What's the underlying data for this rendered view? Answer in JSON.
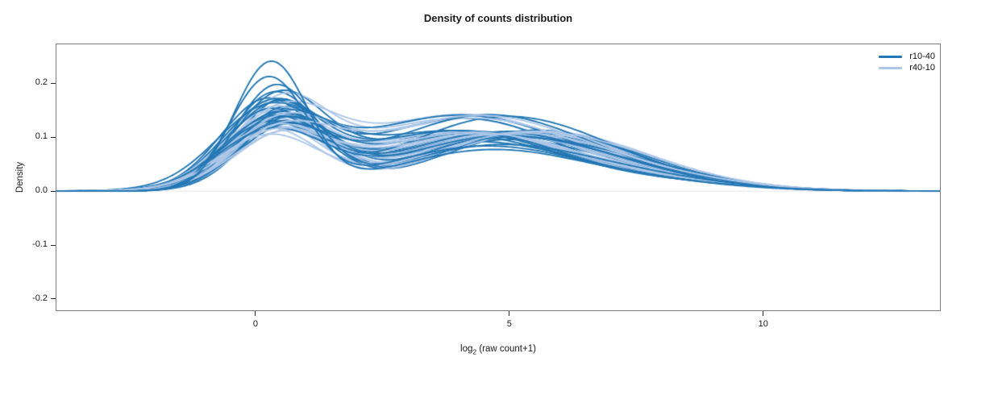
{
  "figure": {
    "title": "Density of counts distribution"
  },
  "axes": {
    "ylabel": "Density",
    "xlabel_prefix": "log",
    "xlabel_sub": "2",
    "xlabel_rest": " (raw count+1)"
  },
  "legend": {
    "items": [
      {
        "label": "r10-40",
        "color": "#2277b4"
      },
      {
        "label": "r40-10",
        "color": "#aec7e8"
      }
    ]
  },
  "chart_data": {
    "type": "line",
    "subtype": "overlaid-density-curves",
    "title": "Density of counts distribution",
    "xlabel": "log2 (raw count+1)",
    "ylabel": "Density",
    "xlim": [
      -3.92,
      13.48
    ],
    "ylim": [
      -0.221,
      0.272
    ],
    "x_ticks": [
      0,
      5,
      10
    ],
    "y_ticks": [
      -0.2,
      -0.1,
      0.0,
      0.1,
      0.2
    ],
    "grid": false,
    "legend_position": "upper right",
    "frame_color": "#7f7f7f",
    "zero_line_color": "#ebebeb",
    "tick_color": "#2b2b2b",
    "curve_model": "each curve = sum of 3 gaussian bumps, params [amp1,mean1,sd1,amp2,mean2,sd2,amp3,mean3,sd3] in data units",
    "series": [
      {
        "name": "r10-40",
        "color": "#2277b4",
        "n_curves": 26,
        "peak1_height_range": [
          0.108,
          0.235
        ],
        "peak1_x_range": [
          0.2,
          0.65
        ],
        "peak2_height_range": [
          0.075,
          0.14
        ],
        "peak2_x_range": [
          3.8,
          5.5
        ],
        "curves": [
          [
            0.17,
            0.35,
            0.85,
            0.09,
            4.2,
            2.0,
            0.018,
            7.8,
            1.7
          ],
          [
            0.165,
            0.5,
            0.85,
            0.095,
            5.0,
            1.9,
            0.01,
            8.5,
            1.5
          ],
          [
            0.16,
            0.2,
            0.9,
            0.1,
            4.5,
            2.1,
            0.015,
            7.2,
            1.9
          ],
          [
            0.155,
            0.45,
            0.88,
            0.105,
            3.9,
            2.2,
            0.012,
            8.8,
            1.4
          ],
          [
            0.15,
            0.6,
            0.9,
            0.098,
            5.3,
            1.8,
            0.02,
            7.0,
            2.0
          ],
          [
            0.148,
            0.3,
            0.95,
            0.135,
            4.1,
            2.0,
            0.01,
            9.0,
            1.5
          ],
          [
            0.145,
            0.55,
            0.85,
            0.102,
            4.9,
            2.1,
            0.016,
            7.6,
            1.8
          ],
          [
            0.142,
            0.25,
            0.92,
            0.108,
            4.3,
            1.9,
            0.013,
            8.3,
            1.6
          ],
          [
            0.14,
            0.5,
            0.95,
            0.095,
            5.5,
            1.9,
            0.018,
            6.8,
            2.1
          ],
          [
            0.138,
            0.35,
            0.9,
            0.112,
            4.0,
            2.2,
            0.011,
            8.6,
            1.5
          ],
          [
            0.135,
            0.65,
            0.88,
            0.1,
            5.1,
            2.0,
            0.015,
            7.4,
            1.9
          ],
          [
            0.133,
            0.4,
            0.96,
            0.105,
            4.6,
            2.1,
            0.012,
            8.1,
            1.7
          ],
          [
            0.13,
            0.2,
            1.0,
            0.14,
            4.0,
            2.2,
            0.014,
            7.9,
            1.6
          ],
          [
            0.128,
            0.55,
            0.92,
            0.098,
            5.4,
            1.8,
            0.019,
            6.9,
            2.0
          ],
          [
            0.126,
            0.3,
            0.98,
            0.11,
            4.4,
            2.0,
            0.01,
            8.9,
            1.4
          ],
          [
            0.124,
            0.6,
            0.9,
            0.104,
            4.8,
            2.1,
            0.016,
            7.3,
            1.8
          ],
          [
            0.122,
            0.45,
            1.0,
            0.108,
            4.2,
            1.9,
            0.013,
            8.4,
            1.6
          ],
          [
            0.12,
            0.25,
            0.95,
            0.13,
            4.8,
            2.0,
            0.017,
            7.1,
            1.9
          ],
          [
            0.118,
            0.5,
            0.98,
            0.112,
            3.9,
            2.1,
            0.011,
            8.7,
            1.5
          ],
          [
            0.115,
            0.35,
            1.02,
            0.106,
            4.7,
            2.0,
            0.015,
            7.7,
            1.7
          ],
          [
            0.112,
            0.6,
            0.95,
            0.098,
            5.0,
            2.2,
            0.012,
            8.0,
            1.6
          ],
          [
            0.11,
            0.4,
            1.0,
            0.138,
            4.5,
            2.0,
            0.014,
            7.5,
            1.8
          ],
          [
            0.108,
            0.3,
            1.05,
            0.102,
            4.9,
            2.1,
            0.01,
            8.2,
            1.5
          ],
          [
            0.19,
            0.4,
            0.8,
            0.085,
            4.8,
            2.0,
            0.012,
            8.2,
            1.6
          ],
          [
            0.205,
            0.25,
            0.75,
            0.08,
            4.4,
            1.9,
            0.015,
            7.5,
            1.8
          ],
          [
            0.235,
            0.3,
            0.72,
            0.075,
            4.6,
            1.9,
            0.012,
            8.0,
            1.8
          ]
        ]
      },
      {
        "name": "r40-10",
        "color": "#aec7e8",
        "n_curves": 26,
        "peak1_height_range": [
          0.098,
          0.158
        ],
        "peak1_x_range": [
          0.2,
          0.65
        ],
        "peak2_height_range": [
          0.095,
          0.142
        ],
        "peak2_x_range": [
          3.8,
          5.5
        ],
        "curves": [
          [
            0.158,
            0.45,
            0.85,
            0.095,
            4.6,
            2.0,
            0.012,
            8.0,
            1.7
          ],
          [
            0.152,
            0.3,
            0.88,
            0.1,
            4.2,
            2.1,
            0.015,
            7.6,
            1.8
          ],
          [
            0.148,
            0.55,
            0.9,
            0.105,
            4.9,
            1.9,
            0.01,
            8.4,
            1.5
          ],
          [
            0.145,
            0.25,
            0.92,
            0.098,
            5.2,
            2.0,
            0.017,
            7.2,
            1.9
          ],
          [
            0.142,
            0.5,
            0.88,
            0.135,
            4.0,
            2.2,
            0.012,
            8.7,
            1.5
          ],
          [
            0.14,
            0.35,
            0.95,
            0.102,
            4.7,
            2.0,
            0.014,
            7.9,
            1.7
          ],
          [
            0.138,
            0.6,
            0.9,
            0.095,
            5.4,
            1.9,
            0.018,
            6.9,
            2.0
          ],
          [
            0.135,
            0.3,
            0.96,
            0.112,
            4.1,
            2.1,
            0.01,
            8.8,
            1.4
          ],
          [
            0.132,
            0.55,
            0.92,
            0.104,
            4.8,
            2.0,
            0.015,
            7.4,
            1.8
          ],
          [
            0.13,
            0.4,
            0.98,
            0.108,
            4.4,
            1.9,
            0.012,
            8.2,
            1.6
          ],
          [
            0.128,
            0.2,
            0.95,
            0.1,
            5.1,
            2.1,
            0.016,
            7.0,
            1.9
          ],
          [
            0.126,
            0.5,
            1.0,
            0.142,
            4.1,
            2.2,
            0.011,
            8.5,
            1.5
          ],
          [
            0.124,
            0.35,
            0.92,
            0.105,
            4.6,
            2.0,
            0.014,
            7.8,
            1.7
          ],
          [
            0.122,
            0.65,
            0.95,
            0.097,
            5.3,
            1.9,
            0.018,
            6.8,
            2.0
          ],
          [
            0.12,
            0.3,
            1.0,
            0.11,
            4.2,
            2.1,
            0.01,
            9.0,
            1.4
          ],
          [
            0.118,
            0.55,
            0.96,
            0.103,
            4.9,
            2.0,
            0.015,
            7.3,
            1.8
          ],
          [
            0.116,
            0.4,
            1.02,
            0.107,
            4.5,
            1.9,
            0.013,
            8.3,
            1.6
          ],
          [
            0.114,
            0.25,
            0.98,
            0.099,
            5.5,
            2.0,
            0.016,
            7.1,
            1.9
          ],
          [
            0.112,
            0.5,
            1.0,
            0.135,
            4.3,
            2.2,
            0.011,
            8.6,
            1.5
          ],
          [
            0.11,
            0.35,
            1.05,
            0.104,
            4.7,
            2.0,
            0.014,
            7.7,
            1.7
          ],
          [
            0.108,
            0.6,
            0.98,
            0.098,
            5.2,
            1.9,
            0.017,
            6.9,
            2.0
          ],
          [
            0.106,
            0.3,
            1.02,
            0.109,
            4.3,
            2.1,
            0.01,
            8.9,
            1.4
          ],
          [
            0.104,
            0.55,
            1.0,
            0.102,
            5.0,
            2.0,
            0.015,
            7.5,
            1.8
          ],
          [
            0.102,
            0.4,
            1.05,
            0.106,
            4.4,
            2.0,
            0.012,
            8.1,
            1.6
          ],
          [
            0.1,
            0.25,
            1.0,
            0.1,
            5.3,
            2.1,
            0.016,
            7.2,
            1.9
          ],
          [
            0.098,
            0.5,
            1.05,
            0.14,
            4.4,
            2.2,
            0.011,
            8.5,
            1.5
          ]
        ]
      }
    ]
  }
}
